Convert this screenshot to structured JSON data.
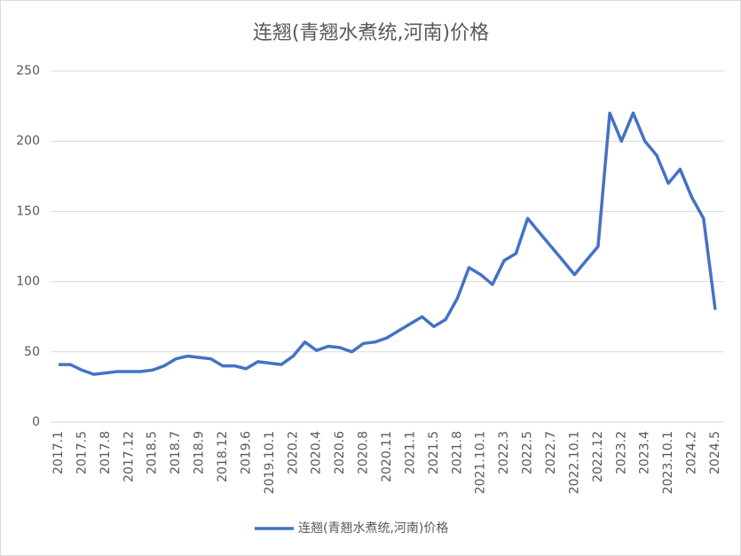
{
  "chart_data": {
    "type": "line",
    "title": "连翘(青翘水煮统,河南)价格",
    "categories": [
      "2017.1",
      null,
      "2017.5",
      null,
      "2017.8",
      null,
      "2017.12",
      null,
      "2018.5",
      null,
      "2018.7",
      null,
      "2018.9",
      null,
      "2018.12",
      null,
      "2019.6",
      null,
      "2019.10.1",
      null,
      "2020.2",
      null,
      "2020.4",
      null,
      "2020.6",
      null,
      "2020.8",
      null,
      "2020.11",
      null,
      "2021.1",
      null,
      "2021.5",
      null,
      "2021.8",
      null,
      "2021.10.1",
      null,
      "2022.3",
      null,
      "2022.5",
      null,
      "2022.7",
      null,
      "2022.10.1",
      null,
      "2022.12",
      null,
      "2023.2",
      null,
      "2023.4",
      null,
      "2023.10.1",
      null,
      "2024.2",
      null,
      "2024.5"
    ],
    "series": [
      {
        "name": "连翘(青翘水煮统,河南)价格",
        "color": "#4472c4",
        "values": [
          41,
          41,
          37,
          34,
          35,
          36,
          36,
          36,
          37,
          40,
          45,
          47,
          46,
          45,
          40,
          40,
          38,
          43,
          42,
          41,
          47,
          57,
          51,
          54,
          53,
          50,
          56,
          57,
          60,
          65,
          70,
          75,
          68,
          73,
          88,
          110,
          105,
          98,
          115,
          120,
          145,
          135,
          125,
          115,
          105,
          115,
          125,
          220,
          200,
          220,
          200,
          190,
          170,
          180,
          160,
          145,
          80
        ]
      }
    ],
    "ylim": [
      0,
      250
    ],
    "yticks": [
      0,
      50,
      100,
      150,
      200,
      250
    ],
    "grid": true,
    "legend": "bottom"
  }
}
